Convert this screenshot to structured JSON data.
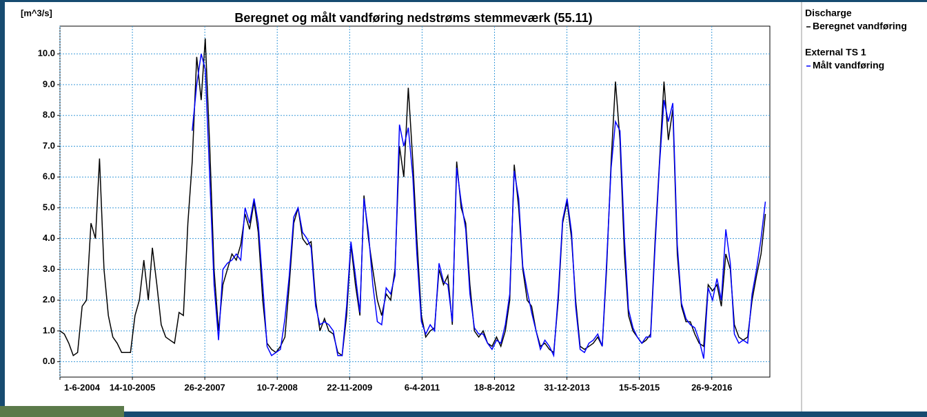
{
  "chart_data": {
    "type": "line",
    "title": "Beregnet og målt vandføring nedstrøms stemmeværk (55.11)",
    "ylabel": "[m^3/s]",
    "grid": true,
    "xlim": [
      "2004-06-01",
      "2017-11-01"
    ],
    "ylim": [
      -0.5,
      10.9
    ],
    "yticks": [
      {
        "value": 0,
        "label": "0.0"
      },
      {
        "value": 1,
        "label": "1.0"
      },
      {
        "value": 2,
        "label": "2.0"
      },
      {
        "value": 3,
        "label": "3.0"
      },
      {
        "value": 4,
        "label": "4.0"
      },
      {
        "value": 5,
        "label": "5.0"
      },
      {
        "value": 6,
        "label": "6.0"
      },
      {
        "value": 7,
        "label": "7.0"
      },
      {
        "value": 8,
        "label": "8.0"
      },
      {
        "value": 9,
        "label": "9.0"
      },
      {
        "value": 10,
        "label": "10.0"
      }
    ],
    "xticks": [
      {
        "value": "2004-06-01",
        "label": "1-6-2004"
      },
      {
        "value": "2005-10-14",
        "label": "14-10-2005"
      },
      {
        "value": "2007-02-26",
        "label": "26-2-2007"
      },
      {
        "value": "2008-07-10",
        "label": "10-7-2008"
      },
      {
        "value": "2009-11-22",
        "label": "22-11-2009"
      },
      {
        "value": "2011-04-06",
        "label": "6-4-2011"
      },
      {
        "value": "2012-08-18",
        "label": "18-8-2012"
      },
      {
        "value": "2013-12-31",
        "label": "31-12-2013"
      },
      {
        "value": "2015-05-15",
        "label": "15-5-2015"
      },
      {
        "value": "2016-09-26",
        "label": "26-9-2016"
      }
    ],
    "x": [
      "2004-06-01",
      "2004-07-01",
      "2004-08-01",
      "2004-09-01",
      "2004-10-01",
      "2004-11-01",
      "2004-12-01",
      "2005-01-01",
      "2005-02-01",
      "2005-03-01",
      "2005-04-01",
      "2005-05-01",
      "2005-06-01",
      "2005-07-01",
      "2005-08-01",
      "2005-09-01",
      "2005-10-01",
      "2005-11-01",
      "2005-12-01",
      "2006-01-01",
      "2006-02-01",
      "2006-03-01",
      "2006-04-01",
      "2006-05-01",
      "2006-06-01",
      "2006-07-01",
      "2006-08-01",
      "2006-09-01",
      "2006-10-01",
      "2006-11-01",
      "2006-12-01",
      "2007-01-01",
      "2007-02-01",
      "2007-03-01",
      "2007-04-01",
      "2007-05-01",
      "2007-06-01",
      "2007-07-01",
      "2007-08-01",
      "2007-09-01",
      "2007-10-01",
      "2007-11-01",
      "2007-12-01",
      "2008-01-01",
      "2008-02-01",
      "2008-03-01",
      "2008-04-01",
      "2008-05-01",
      "2008-06-01",
      "2008-07-01",
      "2008-08-01",
      "2008-09-01",
      "2008-10-01",
      "2008-11-01",
      "2008-12-01",
      "2009-01-01",
      "2009-02-01",
      "2009-03-01",
      "2009-04-01",
      "2009-05-01",
      "2009-06-01",
      "2009-07-01",
      "2009-08-01",
      "2009-09-01",
      "2009-10-01",
      "2009-11-01",
      "2009-12-01",
      "2010-01-01",
      "2010-02-01",
      "2010-03-01",
      "2010-04-01",
      "2010-05-01",
      "2010-06-01",
      "2010-07-01",
      "2010-08-01",
      "2010-09-01",
      "2010-10-01",
      "2010-11-01",
      "2010-12-01",
      "2011-01-01",
      "2011-02-01",
      "2011-03-01",
      "2011-04-01",
      "2011-05-01",
      "2011-06-01",
      "2011-07-01",
      "2011-08-01",
      "2011-09-01",
      "2011-10-01",
      "2011-11-01",
      "2011-12-01",
      "2012-01-01",
      "2012-02-01",
      "2012-03-01",
      "2012-04-01",
      "2012-05-01",
      "2012-06-01",
      "2012-07-01",
      "2012-08-01",
      "2012-09-01",
      "2012-10-01",
      "2012-11-01",
      "2012-12-01",
      "2013-01-01",
      "2013-02-01",
      "2013-03-01",
      "2013-04-01",
      "2013-05-01",
      "2013-06-01",
      "2013-07-01",
      "2013-08-01",
      "2013-09-01",
      "2013-10-01",
      "2013-11-01",
      "2013-12-01",
      "2014-01-01",
      "2014-02-01",
      "2014-03-01",
      "2014-04-01",
      "2014-05-01",
      "2014-06-01",
      "2014-07-01",
      "2014-08-01",
      "2014-09-01",
      "2014-10-01",
      "2014-11-01",
      "2014-12-01",
      "2015-01-01",
      "2015-02-01",
      "2015-03-01",
      "2015-04-01",
      "2015-05-01",
      "2015-06-01",
      "2015-07-01",
      "2015-08-01",
      "2015-09-01",
      "2015-10-01",
      "2015-11-01",
      "2015-12-01",
      "2016-01-01",
      "2016-02-01",
      "2016-03-01",
      "2016-04-01",
      "2016-05-01",
      "2016-06-01",
      "2016-07-01",
      "2016-08-01",
      "2016-09-01",
      "2016-10-01",
      "2016-11-01",
      "2016-12-01",
      "2017-01-01",
      "2017-02-01",
      "2017-03-01",
      "2017-04-01",
      "2017-05-01",
      "2017-06-01",
      "2017-07-01",
      "2017-08-01",
      "2017-09-01",
      "2017-10-01"
    ],
    "series": [
      {
        "name": "Beregnet vandføring",
        "group": "Discharge",
        "color": "#000000",
        "values": [
          1.0,
          0.9,
          0.6,
          0.2,
          0.3,
          1.8,
          2.0,
          4.5,
          4.0,
          6.6,
          3.0,
          1.5,
          0.8,
          0.6,
          0.3,
          0.3,
          0.3,
          1.5,
          2.0,
          3.3,
          2.0,
          3.7,
          2.5,
          1.2,
          0.8,
          0.7,
          0.6,
          1.6,
          1.5,
          4.5,
          6.5,
          9.9,
          8.5,
          10.5,
          7.0,
          3.0,
          1.0,
          2.5,
          3.0,
          3.5,
          3.3,
          3.8,
          4.8,
          4.3,
          5.2,
          4.2,
          2.0,
          0.6,
          0.4,
          0.3,
          0.5,
          0.8,
          2.5,
          4.5,
          5.0,
          4.0,
          3.8,
          3.9,
          2.0,
          1.0,
          1.4,
          1.0,
          0.9,
          0.3,
          0.2,
          1.5,
          3.8,
          2.5,
          1.5,
          5.4,
          4.0,
          3.0,
          2.0,
          1.5,
          2.2,
          2.0,
          3.0,
          7.0,
          6.0,
          8.9,
          6.5,
          4.0,
          1.5,
          0.8,
          1.0,
          1.1,
          3.0,
          2.5,
          2.8,
          1.2,
          6.5,
          5.0,
          4.5,
          2.5,
          1.0,
          0.8,
          1.0,
          0.6,
          0.5,
          0.8,
          0.5,
          1.0,
          2.0,
          6.4,
          5.0,
          3.0,
          2.0,
          1.8,
          1.0,
          0.5,
          0.6,
          0.4,
          0.3,
          2.0,
          4.5,
          5.2,
          4.0,
          2.0,
          0.5,
          0.4,
          0.5,
          0.6,
          0.8,
          0.5,
          3.0,
          6.5,
          9.1,
          7.2,
          3.5,
          1.5,
          1.0,
          0.8,
          0.6,
          0.7,
          0.9,
          4.0,
          6.5,
          9.1,
          7.2,
          8.2,
          3.5,
          1.8,
          1.3,
          1.3,
          0.9,
          0.6,
          0.5,
          2.5,
          2.3,
          2.5,
          1.8,
          3.5,
          3.0,
          1.2,
          0.8,
          0.7,
          0.8,
          2.0,
          2.8,
          3.5,
          4.8
        ]
      },
      {
        "name": "Målt vandføring",
        "group": "External TS 1",
        "color": "#0000ff",
        "values": [
          null,
          null,
          null,
          null,
          null,
          null,
          null,
          null,
          null,
          null,
          null,
          null,
          null,
          null,
          null,
          null,
          null,
          null,
          null,
          null,
          null,
          null,
          null,
          null,
          null,
          null,
          null,
          null,
          null,
          null,
          7.5,
          9.0,
          10.0,
          9.5,
          6.0,
          2.5,
          0.7,
          3.0,
          3.2,
          3.3,
          3.5,
          3.3,
          5.0,
          4.5,
          5.3,
          4.5,
          2.5,
          0.5,
          0.2,
          0.3,
          0.4,
          1.4,
          2.8,
          4.7,
          5.0,
          4.2,
          4.0,
          3.7,
          1.8,
          1.2,
          1.3,
          1.2,
          1.0,
          0.2,
          0.2,
          1.8,
          3.9,
          2.8,
          1.6,
          5.3,
          4.2,
          2.5,
          1.3,
          1.2,
          2.4,
          2.2,
          2.8,
          7.7,
          7.0,
          7.6,
          6.0,
          3.5,
          1.3,
          0.9,
          1.2,
          1.0,
          3.2,
          2.6,
          2.5,
          1.3,
          6.3,
          5.2,
          4.3,
          2.2,
          1.1,
          0.9,
          0.9,
          0.6,
          0.4,
          0.7,
          0.6,
          1.2,
          2.2,
          6.2,
          5.3,
          3.1,
          2.3,
          1.6,
          1.0,
          0.4,
          0.7,
          0.5,
          0.2,
          2.2,
          4.6,
          5.3,
          4.2,
          1.8,
          0.4,
          0.3,
          0.6,
          0.7,
          0.9,
          0.5,
          3.2,
          6.3,
          7.8,
          7.5,
          4.0,
          1.7,
          1.1,
          0.8,
          0.6,
          0.8,
          0.8,
          3.8,
          6.4,
          8.5,
          7.8,
          8.4,
          3.8,
          1.9,
          1.4,
          1.2,
          1.1,
          0.7,
          0.1,
          2.4,
          2.0,
          2.7,
          2.0,
          4.3,
          3.2,
          0.9,
          0.6,
          0.7,
          0.6,
          2.2,
          3.0,
          4.0,
          5.2
        ]
      }
    ]
  }
}
